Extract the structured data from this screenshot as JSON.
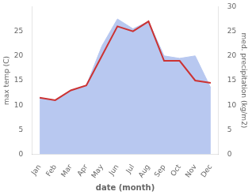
{
  "chart_data": {
    "type": "line",
    "categories": [
      "Jan",
      "Feb",
      "Mar",
      "Apr",
      "May",
      "Jun",
      "Jul",
      "Aug",
      "Sep",
      "Oct",
      "Nov",
      "Dec"
    ],
    "series": [
      {
        "type": "line",
        "color": "#cc3333",
        "values": [
          11.5,
          11.0,
          13.0,
          14.0,
          20.0,
          26.0,
          25.0,
          27.0,
          19.0,
          19.0,
          15.0,
          14.5
        ]
      },
      {
        "type": "area",
        "axis": "y2",
        "color": "#b8c8f0",
        "values": [
          11.5,
          11.0,
          13.0,
          14.0,
          22.0,
          27.5,
          25.5,
          27.0,
          20.0,
          19.5,
          20.0,
          13.5
        ]
      }
    ],
    "xlabel": "date (month)",
    "ylabel": "max temp (C)",
    "y2label": "med. precipitation (kg/m2)",
    "ylim": [
      0,
      30
    ],
    "yticks": [
      0,
      5,
      10,
      15,
      20,
      25
    ],
    "y2lim": [
      0,
      30
    ],
    "y2ticks": [
      0,
      5,
      10,
      15,
      20,
      25,
      30
    ],
    "grid": false
  }
}
